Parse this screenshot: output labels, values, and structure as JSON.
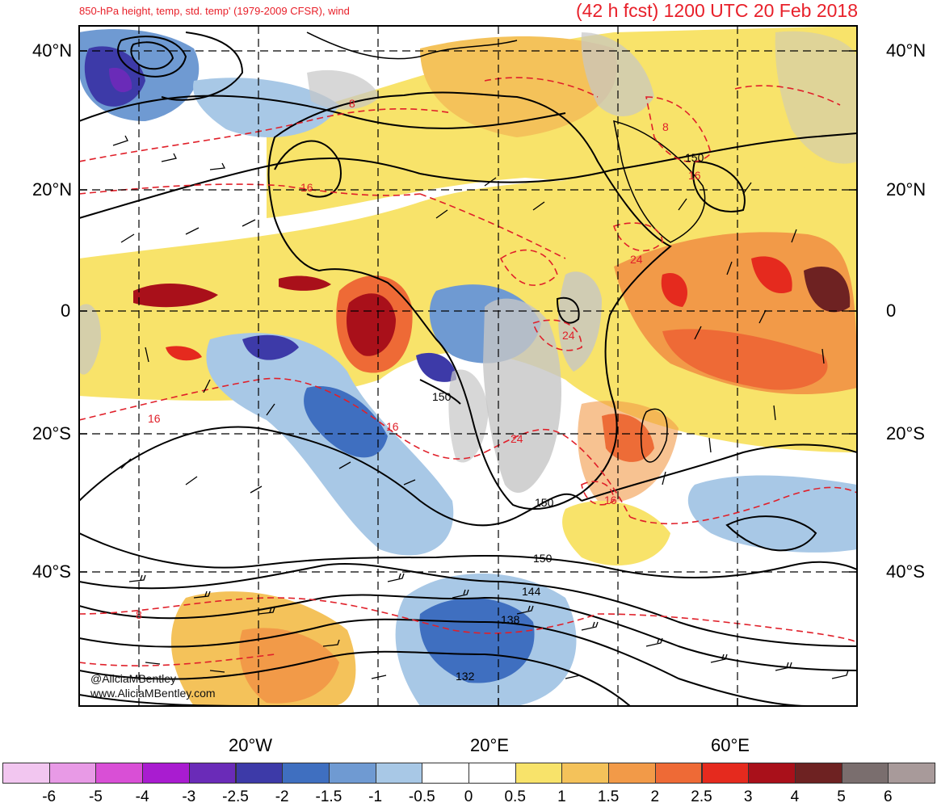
{
  "header": {
    "left_title": "850-hPa height, temp, std. temp' (1979-2009 CFSR), wind",
    "right_title": "(42 h fcst) 1200 UTC 20 Feb 2018"
  },
  "axes": {
    "lat_labels": [
      "40°N",
      "20°N",
      "0",
      "20°S",
      "40°S"
    ],
    "lon_labels": [
      "20°W",
      "20°E",
      "60°E"
    ]
  },
  "contour_labels": {
    "height": [
      "150",
      "150",
      "150",
      "150",
      "144",
      "138",
      "132"
    ],
    "temperature": [
      "8",
      "16",
      "16",
      "16",
      "16",
      "24",
      "24",
      "24",
      "16",
      "8",
      "8"
    ]
  },
  "credits": {
    "twitter": "@AliciaMBentley",
    "website": "www.AliciaMBentley.com"
  },
  "colorbar": {
    "labels": [
      "-6",
      "-5",
      "-4",
      "-3",
      "-2.5",
      "-2",
      "-1.5",
      "-1",
      "-0.5",
      "0",
      "0.5",
      "1",
      "1.5",
      "2",
      "2.5",
      "3",
      "4",
      "5",
      "6"
    ],
    "colors": [
      "#f2c6f0",
      "#e89ae6",
      "#d94fd6",
      "#a91cd0",
      "#6a2bb8",
      "#3d3aa8",
      "#3f6fc0",
      "#6f9ad2",
      "#a8c8e6",
      "#ffffff",
      "#ffffff",
      "#f8e36a",
      "#f4c25a",
      "#f29a48",
      "#ee6a36",
      "#e52a1e",
      "#a9101a",
      "#6e2222",
      "#7a6e6e",
      "#a89a9a"
    ]
  }
}
